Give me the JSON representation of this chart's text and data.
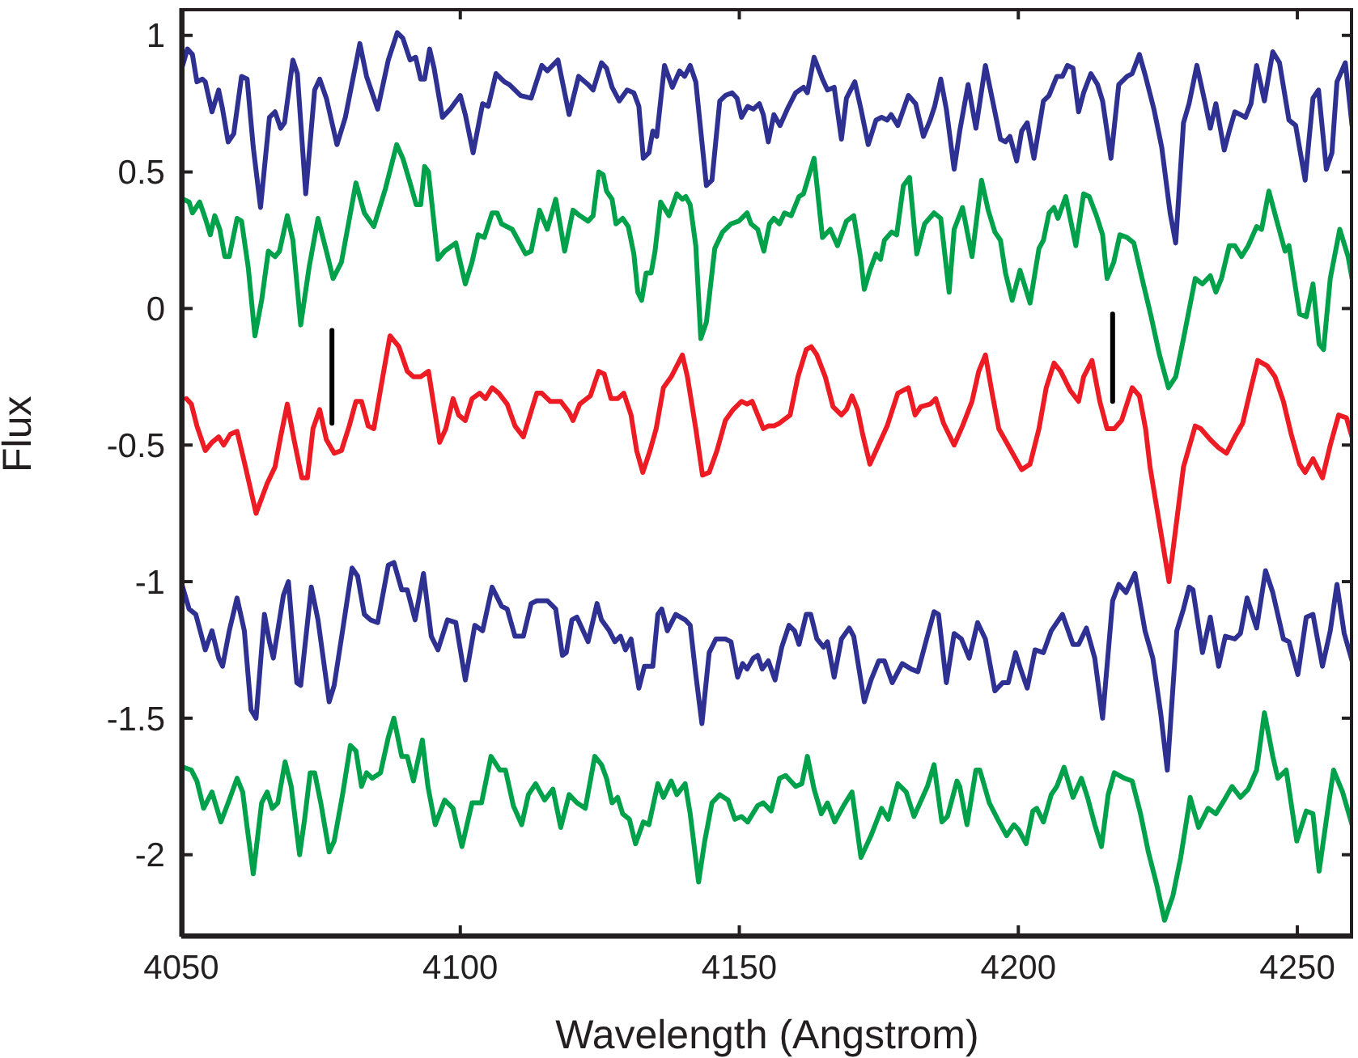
{
  "chart_data": {
    "type": "line",
    "xlabel": "Wavelength (Angstrom)",
    "ylabel": "Flux",
    "xlim": [
      4050,
      4260
    ],
    "xticks": [
      4050,
      4100,
      4150,
      4200,
      4250
    ],
    "ylim": [
      -2.3,
      1.1
    ],
    "yticks": [
      -2,
      -1.5,
      -1,
      -0.5,
      0,
      0.5,
      1
    ],
    "series": [
      {
        "color": "#2e3192",
        "x": [
          4050.1,
          4051.1,
          4052.0,
          4052.8,
          4053.8,
          4054.3,
          4055.5,
          4056.7,
          4057.4,
          4058.4,
          4059.4,
          4060.8,
          4061.8,
          4062.9,
          4064.2,
          4065.8,
          4066.8,
          4067.8,
          4068.5,
          4070.0,
          4070.8,
          4072.3,
          4073.9,
          4074.8,
          4076.0,
          4077.9,
          4079.4,
          4082.0,
          4083.2,
          4085.2,
          4087.1,
          4088.7,
          4089.7,
          4091.0,
          4092.0,
          4092.9,
          4093.6,
          4094.5,
          4095.3,
          4096.8,
          4098.2,
          4100.0,
          4100.9,
          4102.3,
          4104.0,
          4105.0,
          4106.4,
          4107.9,
          4108.8,
          4110.8,
          4112.7,
          4114.6,
          4115.6,
          4117.5,
          4119.5,
          4121.2,
          4122.9,
          4123.8,
          4125.3,
          4126.2,
          4127.2,
          4128.5,
          4129.9,
          4131.1,
          4132.0,
          4132.8,
          4133.8,
          4134.5,
          4135.2,
          4136.6,
          4138.0,
          4139.3,
          4140.2,
          4141.2,
          4142.2,
          4143.1,
          4144.1,
          4145.1,
          4146.5,
          4147.5,
          4148.7,
          4149.6,
          4150.4,
          4151.5,
          4152.5,
          4153.6,
          4154.3,
          4155.2,
          4156.2,
          4157.3,
          4158.6,
          4160.1,
          4161.5,
          4162.2,
          4163.4,
          4164.9,
          4165.8,
          4167.0,
          4168.3,
          4169.2,
          4170.7,
          4171.8,
          4173.1,
          4174.5,
          4175.5,
          4176.5,
          4177.2,
          4178.4,
          4180.3,
          4181.6,
          4183.0,
          4184.2,
          4185.0,
          4186.1,
          4187.1,
          4188.5,
          4189.5,
          4191.0,
          4192.4,
          4194.1,
          4195.3,
          4196.8,
          4197.7,
          4198.5,
          4199.7,
          4200.6,
          4201.6,
          4202.8,
          4204.5,
          4205.5,
          4206.9,
          4207.9,
          4208.8,
          4209.8,
          4210.8,
          4211.7,
          4213.0,
          4214.2,
          4215.1,
          4216.6,
          4218.0,
          4219.5,
          4220.4,
          4221.7,
          4222.8,
          4224.3,
          4225.7,
          4227.2,
          4228.2,
          4229.6,
          4230.6,
          4232.0,
          4233.5,
          4234.4,
          4235.4,
          4236.9,
          4237.8,
          4238.8,
          4239.8,
          4240.7,
          4241.7,
          4242.7,
          4244.1,
          4245.6,
          4246.8,
          4248.5,
          4249.7,
          4251.4,
          4252.8,
          4253.8,
          4255.2,
          4256.2,
          4257.1,
          4258.6,
          4259.8
        ],
        "values": [
          0.88,
          0.95,
          0.93,
          0.83,
          0.84,
          0.83,
          0.72,
          0.8,
          0.73,
          0.61,
          0.64,
          0.85,
          0.84,
          0.59,
          0.37,
          0.7,
          0.72,
          0.66,
          0.68,
          0.91,
          0.86,
          0.42,
          0.8,
          0.84,
          0.77,
          0.6,
          0.7,
          0.97,
          0.85,
          0.73,
          0.91,
          1.01,
          0.99,
          0.91,
          0.92,
          0.84,
          0.84,
          0.95,
          0.88,
          0.7,
          0.73,
          0.78,
          0.71,
          0.57,
          0.75,
          0.74,
          0.86,
          0.83,
          0.82,
          0.78,
          0.77,
          0.89,
          0.87,
          0.91,
          0.71,
          0.85,
          0.82,
          0.8,
          0.9,
          0.88,
          0.81,
          0.76,
          0.8,
          0.79,
          0.74,
          0.55,
          0.57,
          0.65,
          0.63,
          0.89,
          0.81,
          0.87,
          0.85,
          0.89,
          0.83,
          0.65,
          0.45,
          0.47,
          0.76,
          0.78,
          0.79,
          0.77,
          0.7,
          0.74,
          0.73,
          0.75,
          0.71,
          0.61,
          0.71,
          0.67,
          0.73,
          0.79,
          0.81,
          0.79,
          0.92,
          0.84,
          0.8,
          0.81,
          0.62,
          0.77,
          0.83,
          0.73,
          0.6,
          0.69,
          0.7,
          0.69,
          0.71,
          0.67,
          0.78,
          0.75,
          0.63,
          0.69,
          0.74,
          0.84,
          0.73,
          0.51,
          0.65,
          0.82,
          0.66,
          0.89,
          0.77,
          0.62,
          0.61,
          0.63,
          0.54,
          0.65,
          0.68,
          0.55,
          0.76,
          0.78,
          0.85,
          0.85,
          0.89,
          0.88,
          0.72,
          0.79,
          0.86,
          0.82,
          0.76,
          0.55,
          0.82,
          0.85,
          0.86,
          0.93,
          0.85,
          0.73,
          0.59,
          0.35,
          0.24,
          0.68,
          0.75,
          0.89,
          0.75,
          0.66,
          0.75,
          0.58,
          0.65,
          0.72,
          0.71,
          0.7,
          0.75,
          0.89,
          0.76,
          0.94,
          0.9,
          0.69,
          0.67,
          0.47,
          0.77,
          0.8,
          0.51,
          0.57,
          0.83,
          0.9,
          0.67
        ]
      },
      {
        "color": "#00a14b",
        "x": [
          4050.4,
          4051.4,
          4052.0,
          4053.3,
          4054.3,
          4055.2,
          4056.0,
          4056.9,
          4057.8,
          4058.6,
          4060.0,
          4060.8,
          4062.0,
          4063.2,
          4064.4,
          4065.6,
          4066.8,
          4067.6,
          4069.0,
          4070.0,
          4071.4,
          4072.9,
          4074.5,
          4076.0,
          4077.2,
          4078.7,
          4081.3,
          4082.8,
          4084.5,
          4086.6,
          4088.6,
          4089.7,
          4091.0,
          4092.1,
          4092.9,
          4093.6,
          4094.3,
          4096.0,
          4097.2,
          4099.2,
          4100.9,
          4102.1,
          4103.2,
          4104.3,
          4105.7,
          4106.6,
          4107.4,
          4109.3,
          4111.7,
          4112.7,
          4114.2,
          4115.6,
          4117.1,
          4118.7,
          4120.2,
          4121.4,
          4122.9,
          4123.8,
          4124.8,
          4125.6,
          4126.2,
          4127.2,
          4127.9,
          4129.1,
          4130.1,
          4131.1,
          4131.8,
          4132.5,
          4133.3,
          4134.2,
          4134.9,
          4135.9,
          4137.4,
          4138.8,
          4139.8,
          4140.4,
          4141.2,
          4142.2,
          4143.1,
          4144.1,
          4145.6,
          4147.0,
          4148.5,
          4149.9,
          4151.4,
          4152.1,
          4153.3,
          4154.4,
          4155.4,
          4156.2,
          4157.2,
          4158.1,
          4159.3,
          4160.7,
          4161.5,
          4163.4,
          4164.9,
          4166.3,
          4167.6,
          4169.2,
          4170.5,
          4171.7,
          4172.4,
          4173.4,
          4174.5,
          4175.3,
          4176.0,
          4177.3,
          4178.2,
          4179.4,
          4180.5,
          4181.8,
          4183.2,
          4184.9,
          4186.1,
          4187.6,
          4188.5,
          4190.0,
          4191.7,
          4193.4,
          4194.6,
          4195.8,
          4196.8,
          4197.7,
          4198.9,
          4200.3,
          4202.1,
          4203.7,
          4204.5,
          4205.5,
          4206.4,
          4207.1,
          4208.5,
          4210.3,
          4211.7,
          4212.7,
          4214.0,
          4215.1,
          4215.9,
          4217.1,
          4218.2,
          4219.5,
          4220.7,
          4222.4,
          4223.8,
          4225.3,
          4226.9,
          4228.2,
          4229.6,
          4231.7,
          4233.0,
          4234.4,
          4235.4,
          4236.4,
          4237.8,
          4238.8,
          4240.0,
          4241.2,
          4242.7,
          4243.6,
          4244.9,
          4246.2,
          4247.8,
          4248.5,
          4250.4,
          4251.6,
          4252.8,
          4253.9,
          4254.7,
          4255.9,
          4257.6,
          4259.1,
          4259.8
        ],
        "values": [
          0.4,
          0.39,
          0.35,
          0.39,
          0.33,
          0.27,
          0.34,
          0.29,
          0.19,
          0.19,
          0.33,
          0.32,
          0.15,
          -0.1,
          0.03,
          0.21,
          0.19,
          0.21,
          0.34,
          0.25,
          -0.06,
          0.15,
          0.33,
          0.21,
          0.11,
          0.17,
          0.46,
          0.35,
          0.3,
          0.44,
          0.6,
          0.55,
          0.46,
          0.38,
          0.38,
          0.52,
          0.5,
          0.18,
          0.21,
          0.24,
          0.09,
          0.17,
          0.27,
          0.26,
          0.35,
          0.35,
          0.31,
          0.29,
          0.2,
          0.21,
          0.36,
          0.29,
          0.4,
          0.21,
          0.36,
          0.34,
          0.32,
          0.34,
          0.5,
          0.49,
          0.43,
          0.4,
          0.31,
          0.33,
          0.3,
          0.2,
          0.06,
          0.03,
          0.13,
          0.13,
          0.21,
          0.39,
          0.34,
          0.42,
          0.4,
          0.41,
          0.38,
          0.23,
          -0.11,
          -0.05,
          0.22,
          0.28,
          0.31,
          0.32,
          0.35,
          0.31,
          0.29,
          0.21,
          0.31,
          0.33,
          0.31,
          0.35,
          0.34,
          0.41,
          0.42,
          0.55,
          0.26,
          0.29,
          0.23,
          0.32,
          0.34,
          0.19,
          0.07,
          0.14,
          0.2,
          0.18,
          0.25,
          0.28,
          0.27,
          0.45,
          0.48,
          0.2,
          0.31,
          0.35,
          0.33,
          0.06,
          0.29,
          0.37,
          0.19,
          0.47,
          0.36,
          0.28,
          0.25,
          0.13,
          0.03,
          0.14,
          0.02,
          0.22,
          0.25,
          0.35,
          0.37,
          0.33,
          0.41,
          0.23,
          0.42,
          0.41,
          0.34,
          0.27,
          0.11,
          0.17,
          0.27,
          0.26,
          0.24,
          0.09,
          -0.03,
          -0.17,
          -0.29,
          -0.25,
          -0.11,
          0.11,
          0.09,
          0.12,
          0.06,
          0.11,
          0.23,
          0.23,
          0.19,
          0.23,
          0.3,
          0.29,
          0.43,
          0.33,
          0.21,
          0.23,
          -0.02,
          -0.03,
          0.09,
          -0.13,
          -0.15,
          0.11,
          0.29,
          0.19,
          0.11
        ]
      },
      {
        "color": "#ed1c24",
        "x": [
          4050.9,
          4051.8,
          4052.8,
          4054.3,
          4055.5,
          4056.7,
          4057.6,
          4058.8,
          4060.0,
          4061.5,
          4063.4,
          4065.4,
          4066.8,
          4067.8,
          4069.0,
          4070.2,
          4071.6,
          4072.6,
          4073.6,
          4074.8,
          4076.0,
          4077.4,
          4078.7,
          4080.1,
          4081.3,
          4082.3,
          4083.5,
          4084.5,
          4086.1,
          4087.4,
          4089.0,
          4090.5,
          4091.6,
          4092.9,
          4094.3,
          4096.3,
          4097.4,
          4098.7,
          4099.7,
          4100.9,
          4102.1,
          4103.5,
          4104.5,
          4105.7,
          4106.9,
          4108.4,
          4109.8,
          4111.3,
          4112.5,
          4113.7,
          4114.6,
          4116.1,
          4118.0,
          4119.5,
          4120.2,
          4121.4,
          4123.3,
          4124.8,
          4125.8,
          4127.0,
          4128.2,
          4129.3,
          4130.6,
          4131.6,
          4132.7,
          4134.0,
          4135.1,
          4136.4,
          4137.8,
          4139.8,
          4140.7,
          4142.2,
          4143.4,
          4144.6,
          4146.0,
          4147.5,
          4148.9,
          4150.4,
          4151.4,
          4152.3,
          4153.3,
          4154.3,
          4155.2,
          4156.2,
          4157.2,
          4159.1,
          4160.5,
          4162.0,
          4162.9,
          4163.9,
          4165.4,
          4166.8,
          4168.3,
          4169.2,
          4170.2,
          4171.2,
          4172.1,
          4173.4,
          4174.5,
          4176.5,
          4178.4,
          4180.3,
          4181.5,
          4182.5,
          4184.2,
          4185.2,
          4186.6,
          4188.5,
          4190.0,
          4191.7,
          4192.9,
          4194.1,
          4195.3,
          4196.5,
          4198.7,
          4200.6,
          4202.1,
          4203.7,
          4205.0,
          4206.4,
          4207.6,
          4209.3,
          4210.8,
          4211.7,
          4213.2,
          4214.6,
          4215.9,
          4217.2,
          4218.5,
          4220.4,
          4221.7,
          4222.8,
          4223.6,
          4227.0,
          4229.6,
          4231.7,
          4232.7,
          4234.4,
          4235.9,
          4237.3,
          4238.8,
          4240.2,
          4241.7,
          4242.9,
          4244.6,
          4246.0,
          4247.5,
          4248.9,
          4250.4,
          4251.4,
          4252.8,
          4254.5,
          4255.9,
          4257.4,
          4258.8,
          4259.8
        ],
        "values": [
          -0.33,
          -0.35,
          -0.43,
          -0.52,
          -0.49,
          -0.47,
          -0.5,
          -0.46,
          -0.45,
          -0.58,
          -0.75,
          -0.64,
          -0.58,
          -0.47,
          -0.35,
          -0.48,
          -0.62,
          -0.62,
          -0.44,
          -0.37,
          -0.48,
          -0.53,
          -0.52,
          -0.43,
          -0.34,
          -0.34,
          -0.43,
          -0.44,
          -0.25,
          -0.1,
          -0.14,
          -0.23,
          -0.25,
          -0.25,
          -0.23,
          -0.49,
          -0.44,
          -0.33,
          -0.39,
          -0.41,
          -0.33,
          -0.31,
          -0.33,
          -0.29,
          -0.31,
          -0.35,
          -0.43,
          -0.47,
          -0.39,
          -0.31,
          -0.31,
          -0.34,
          -0.34,
          -0.38,
          -0.41,
          -0.35,
          -0.32,
          -0.23,
          -0.24,
          -0.33,
          -0.33,
          -0.31,
          -0.39,
          -0.52,
          -0.6,
          -0.52,
          -0.44,
          -0.29,
          -0.25,
          -0.17,
          -0.25,
          -0.44,
          -0.61,
          -0.6,
          -0.52,
          -0.41,
          -0.37,
          -0.34,
          -0.35,
          -0.34,
          -0.39,
          -0.44,
          -0.43,
          -0.43,
          -0.42,
          -0.39,
          -0.25,
          -0.15,
          -0.14,
          -0.17,
          -0.25,
          -0.36,
          -0.39,
          -0.37,
          -0.32,
          -0.37,
          -0.46,
          -0.57,
          -0.52,
          -0.43,
          -0.31,
          -0.29,
          -0.39,
          -0.36,
          -0.35,
          -0.33,
          -0.42,
          -0.5,
          -0.43,
          -0.34,
          -0.23,
          -0.17,
          -0.31,
          -0.44,
          -0.52,
          -0.59,
          -0.57,
          -0.44,
          -0.29,
          -0.2,
          -0.23,
          -0.3,
          -0.34,
          -0.25,
          -0.19,
          -0.34,
          -0.44,
          -0.44,
          -0.41,
          -0.29,
          -0.32,
          -0.44,
          -0.58,
          -1.0,
          -0.58,
          -0.43,
          -0.44,
          -0.48,
          -0.51,
          -0.53,
          -0.47,
          -0.42,
          -0.29,
          -0.19,
          -0.21,
          -0.25,
          -0.34,
          -0.46,
          -0.57,
          -0.6,
          -0.55,
          -0.62,
          -0.5,
          -0.39,
          -0.4,
          -0.47
        ]
      },
      {
        "color": "#2e3192",
        "x": [
          4050.1,
          4051.4,
          4052.6,
          4054.3,
          4055.5,
          4056.7,
          4057.4,
          4058.6,
          4060.0,
          4061.3,
          4062.5,
          4063.4,
          4064.9,
          4065.8,
          4066.5,
          4068.3,
          4069.2,
          4070.7,
          4071.4,
          4073.3,
          4074.5,
          4076.5,
          4077.4,
          4078.9,
          4080.6,
          4081.6,
          4082.8,
          4083.9,
          4085.2,
          4087.1,
          4088.1,
          4089.5,
          4090.5,
          4091.9,
          4093.4,
          4094.8,
          4096.0,
          4097.7,
          4099.2,
          4100.9,
          4102.6,
          4104.0,
          4105.7,
          4107.4,
          4108.4,
          4109.8,
          4111.3,
          4112.7,
          4113.7,
          4115.6,
          4117.1,
          4118.3,
          4119.0,
          4120.0,
          4120.9,
          4122.9,
          4124.5,
          4125.3,
          4126.7,
          4127.7,
          4128.7,
          4129.6,
          4130.6,
          4132.0,
          4133.0,
          4134.5,
          4135.4,
          4136.1,
          4137.1,
          4138.6,
          4140.3,
          4141.2,
          4142.2,
          4143.3,
          4144.6,
          4145.8,
          4147.5,
          4148.5,
          4149.7,
          4150.6,
          4151.4,
          4152.5,
          4153.3,
          4154.1,
          4155.2,
          4156.4,
          4157.6,
          4158.9,
          4159.9,
          4160.7,
          4162.0,
          4162.8,
          4163.9,
          4165.1,
          4165.8,
          4167.0,
          4168.3,
          4169.7,
          4170.5,
          4172.4,
          4173.6,
          4175.0,
          4176.0,
          4177.4,
          4179.2,
          4180.8,
          4182.0,
          4183.7,
          4184.9,
          4185.7,
          4187.1,
          4188.5,
          4189.8,
          4191.2,
          4192.7,
          4194.1,
          4195.8,
          4197.2,
          4198.2,
          4199.5,
          4200.4,
          4201.6,
          4203.0,
          4204.5,
          4205.9,
          4207.9,
          4209.8,
          4210.8,
          4212.2,
          4213.7,
          4215.1,
          4216.9,
          4218.0,
          4219.3,
          4220.9,
          4222.7,
          4224.1,
          4225.5,
          4226.7,
          4228.4,
          4229.6,
          4230.6,
          4231.3,
          4233.0,
          4234.4,
          4235.9,
          4237.1,
          4238.8,
          4239.8,
          4241.0,
          4242.7,
          4244.3,
          4245.6,
          4247.5,
          4248.5,
          4250.1,
          4251.6,
          4252.8,
          4254.5,
          4255.9,
          4257.1,
          4258.4,
          4259.8
        ],
        "values": [
          -1.01,
          -1.1,
          -1.12,
          -1.25,
          -1.18,
          -1.28,
          -1.31,
          -1.18,
          -1.06,
          -1.18,
          -1.47,
          -1.5,
          -1.12,
          -1.22,
          -1.28,
          -1.05,
          -1.0,
          -1.37,
          -1.38,
          -1.02,
          -1.14,
          -1.44,
          -1.38,
          -1.18,
          -0.95,
          -0.98,
          -1.12,
          -1.14,
          -1.15,
          -0.94,
          -0.93,
          -1.03,
          -1.03,
          -1.14,
          -0.97,
          -1.2,
          -1.25,
          -1.14,
          -1.15,
          -1.36,
          -1.16,
          -1.18,
          -1.02,
          -1.09,
          -1.1,
          -1.2,
          -1.2,
          -1.08,
          -1.07,
          -1.07,
          -1.1,
          -1.27,
          -1.26,
          -1.14,
          -1.13,
          -1.22,
          -1.08,
          -1.14,
          -1.18,
          -1.22,
          -1.2,
          -1.25,
          -1.21,
          -1.39,
          -1.31,
          -1.31,
          -1.12,
          -1.1,
          -1.18,
          -1.12,
          -1.14,
          -1.16,
          -1.34,
          -1.52,
          -1.26,
          -1.21,
          -1.21,
          -1.22,
          -1.35,
          -1.3,
          -1.32,
          -1.28,
          -1.27,
          -1.32,
          -1.29,
          -1.36,
          -1.24,
          -1.16,
          -1.18,
          -1.23,
          -1.12,
          -1.12,
          -1.21,
          -1.24,
          -1.22,
          -1.35,
          -1.21,
          -1.17,
          -1.2,
          -1.44,
          -1.36,
          -1.29,
          -1.29,
          -1.37,
          -1.3,
          -1.32,
          -1.33,
          -1.2,
          -1.11,
          -1.12,
          -1.37,
          -1.19,
          -1.21,
          -1.28,
          -1.15,
          -1.21,
          -1.4,
          -1.37,
          -1.37,
          -1.26,
          -1.32,
          -1.39,
          -1.25,
          -1.26,
          -1.18,
          -1.12,
          -1.23,
          -1.23,
          -1.17,
          -1.28,
          -1.5,
          -1.07,
          -1.01,
          -1.04,
          -0.97,
          -1.18,
          -1.28,
          -1.48,
          -1.69,
          -1.18,
          -1.1,
          -1.02,
          -1.03,
          -1.26,
          -1.13,
          -1.31,
          -1.2,
          -1.21,
          -1.19,
          -1.06,
          -1.17,
          -0.96,
          -1.04,
          -1.21,
          -1.22,
          -1.34,
          -1.13,
          -1.12,
          -1.31,
          -1.18,
          -1.01,
          -1.19,
          -1.29
        ]
      },
      {
        "color": "#00a14b",
        "x": [
          4050.4,
          4051.8,
          4052.8,
          4054.0,
          4055.5,
          4057.1,
          4058.4,
          4060.0,
          4061.0,
          4061.8,
          4062.9,
          4064.4,
          4065.4,
          4066.3,
          4067.3,
          4068.6,
          4069.7,
          4071.2,
          4072.1,
          4073.1,
          4073.9,
          4075.0,
          4076.5,
          4077.4,
          4078.9,
          4080.3,
          4081.3,
          4082.3,
          4083.2,
          4084.2,
          4085.7,
          4087.1,
          4088.1,
          4089.5,
          4090.5,
          4091.6,
          4093.2,
          4094.2,
          4095.5,
          4097.2,
          4098.7,
          4100.3,
          4102.1,
          4103.8,
          4105.5,
          4107.1,
          4108.1,
          4109.5,
          4111.0,
          4112.2,
          4113.5,
          4115.1,
          4116.6,
          4118.0,
          4119.5,
          4120.9,
          4122.4,
          4124.1,
          4125.3,
          4126.2,
          4127.2,
          4128.2,
          4129.1,
          4130.3,
          4131.4,
          4132.8,
          4133.8,
          4135.4,
          4136.4,
          4137.8,
          4138.8,
          4140.3,
          4141.2,
          4142.7,
          4143.8,
          4145.1,
          4146.5,
          4148.0,
          4149.2,
          4150.4,
          4151.5,
          4153.3,
          4154.3,
          4155.7,
          4157.2,
          4158.3,
          4160.1,
          4161.2,
          4162.2,
          4163.4,
          4164.7,
          4165.8,
          4167.1,
          4168.7,
          4170.2,
          4171.8,
          4173.6,
          4175.5,
          4176.7,
          4178.4,
          4179.9,
          4181.3,
          4183.7,
          4184.9,
          4186.3,
          4187.3,
          4189.0,
          4189.5,
          4190.8,
          4192.4,
          4193.1,
          4194.8,
          4196.3,
          4197.9,
          4199.2,
          4200.1,
          4201.4,
          4202.6,
          4203.3,
          4204.5,
          4205.9,
          4206.9,
          4208.2,
          4209.8,
          4211.3,
          4212.4,
          4213.7,
          4214.9,
          4216.1,
          4217.2,
          4219.0,
          4220.4,
          4221.9,
          4223.3,
          4224.8,
          4226.2,
          4227.7,
          4229.1,
          4230.8,
          4232.3,
          4234.0,
          4235.4,
          4236.9,
          4238.3,
          4239.8,
          4241.2,
          4242.7,
          4244.1,
          4245.6,
          4246.5,
          4248.0,
          4249.9,
          4251.6,
          4252.8,
          4253.9,
          4255.7,
          4256.5,
          4258.1,
          4259.8
        ],
        "values": [
          -1.68,
          -1.69,
          -1.73,
          -1.83,
          -1.77,
          -1.88,
          -1.81,
          -1.72,
          -1.77,
          -1.9,
          -2.07,
          -1.81,
          -1.77,
          -1.83,
          -1.81,
          -1.66,
          -1.75,
          -2.0,
          -1.87,
          -1.7,
          -1.7,
          -1.81,
          -1.99,
          -1.95,
          -1.78,
          -1.6,
          -1.62,
          -1.75,
          -1.7,
          -1.72,
          -1.7,
          -1.57,
          -1.5,
          -1.64,
          -1.64,
          -1.73,
          -1.58,
          -1.75,
          -1.89,
          -1.8,
          -1.83,
          -1.97,
          -1.81,
          -1.81,
          -1.64,
          -1.69,
          -1.69,
          -1.82,
          -1.89,
          -1.78,
          -1.74,
          -1.8,
          -1.76,
          -1.9,
          -1.78,
          -1.81,
          -1.83,
          -1.64,
          -1.67,
          -1.72,
          -1.81,
          -1.79,
          -1.85,
          -1.87,
          -1.96,
          -1.88,
          -1.89,
          -1.74,
          -1.79,
          -1.73,
          -1.78,
          -1.74,
          -1.85,
          -2.1,
          -1.95,
          -1.81,
          -1.78,
          -1.8,
          -1.87,
          -1.86,
          -1.88,
          -1.82,
          -1.81,
          -1.84,
          -1.72,
          -1.71,
          -1.75,
          -1.74,
          -1.64,
          -1.76,
          -1.85,
          -1.81,
          -1.88,
          -1.82,
          -1.77,
          -2.01,
          -1.93,
          -1.83,
          -1.87,
          -1.74,
          -1.77,
          -1.86,
          -1.75,
          -1.67,
          -1.88,
          -1.86,
          -1.73,
          -1.75,
          -1.89,
          -1.69,
          -1.69,
          -1.81,
          -1.87,
          -1.93,
          -1.89,
          -1.91,
          -1.96,
          -1.84,
          -1.83,
          -1.88,
          -1.78,
          -1.75,
          -1.68,
          -1.79,
          -1.72,
          -1.79,
          -1.89,
          -1.97,
          -1.78,
          -1.7,
          -1.72,
          -1.73,
          -1.85,
          -1.99,
          -2.11,
          -2.24,
          -2.15,
          -2.01,
          -1.79,
          -1.9,
          -1.83,
          -1.85,
          -1.8,
          -1.75,
          -1.79,
          -1.76,
          -1.69,
          -1.48,
          -1.64,
          -1.72,
          -1.69,
          -1.95,
          -1.84,
          -1.85,
          -2.06,
          -1.8,
          -1.69,
          -1.77,
          -1.89
        ]
      },
      {
        "type": "line",
        "color": "#000000",
        "x": [
          4077.0,
          4077.0
        ],
        "values": [
          -0.08,
          -0.42
        ]
      },
      {
        "type": "line",
        "color": "#000000",
        "x": [
          4216.9,
          4216.9
        ],
        "values": [
          -0.02,
          -0.34
        ]
      }
    ]
  }
}
